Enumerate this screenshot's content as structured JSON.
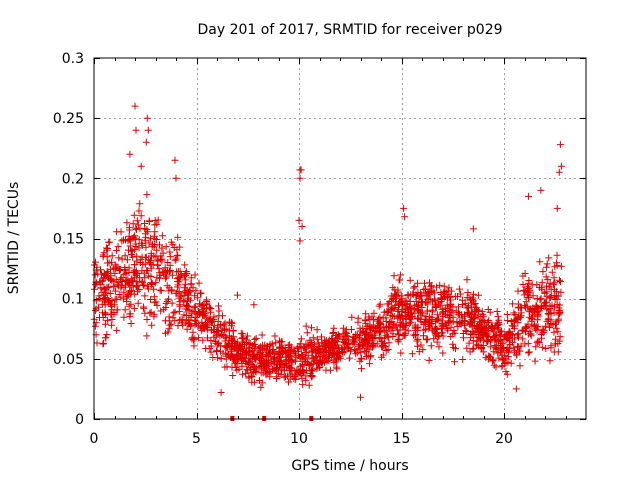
{
  "chart_data": {
    "type": "scatter",
    "title": "Day 201 of 2017, SRMTID for receiver p029",
    "xlabel": "GPS time / hours",
    "ylabel": "SRMTID / TECUs",
    "xlim": [
      0,
      24
    ],
    "ylim": [
      0,
      0.3
    ],
    "x_ticks": [
      0,
      5,
      10,
      15,
      20
    ],
    "x_tick_labels": [
      "0",
      "5",
      "10",
      "15",
      "20"
    ],
    "y_ticks": [
      0,
      0.05,
      0.1,
      0.15,
      0.2,
      0.25,
      0.3
    ],
    "y_tick_labels": [
      "0",
      "0.05",
      "0.1",
      "0.15",
      "0.2",
      "0.25",
      "0.3"
    ],
    "grid": true,
    "marker": "plus",
    "series": [
      {
        "name": "SRMTID",
        "color": "#e00000",
        "profile": [
          {
            "x": 0.0,
            "y": 0.1,
            "spread": 0.03
          },
          {
            "x": 1.0,
            "y": 0.11,
            "spread": 0.035
          },
          {
            "x": 2.0,
            "y": 0.13,
            "spread": 0.045
          },
          {
            "x": 3.0,
            "y": 0.13,
            "spread": 0.045
          },
          {
            "x": 4.0,
            "y": 0.11,
            "spread": 0.035
          },
          {
            "x": 5.0,
            "y": 0.09,
            "spread": 0.025
          },
          {
            "x": 6.0,
            "y": 0.07,
            "spread": 0.02
          },
          {
            "x": 7.0,
            "y": 0.055,
            "spread": 0.015
          },
          {
            "x": 8.0,
            "y": 0.05,
            "spread": 0.015
          },
          {
            "x": 9.0,
            "y": 0.05,
            "spread": 0.015
          },
          {
            "x": 10.0,
            "y": 0.05,
            "spread": 0.018
          },
          {
            "x": 11.0,
            "y": 0.055,
            "spread": 0.015
          },
          {
            "x": 12.0,
            "y": 0.06,
            "spread": 0.015
          },
          {
            "x": 13.0,
            "y": 0.065,
            "spread": 0.015
          },
          {
            "x": 14.0,
            "y": 0.075,
            "spread": 0.018
          },
          {
            "x": 15.0,
            "y": 0.09,
            "spread": 0.025
          },
          {
            "x": 16.0,
            "y": 0.085,
            "spread": 0.025
          },
          {
            "x": 17.0,
            "y": 0.085,
            "spread": 0.025
          },
          {
            "x": 18.0,
            "y": 0.085,
            "spread": 0.025
          },
          {
            "x": 19.0,
            "y": 0.075,
            "spread": 0.02
          },
          {
            "x": 20.0,
            "y": 0.06,
            "spread": 0.02
          },
          {
            "x": 21.0,
            "y": 0.09,
            "spread": 0.035
          },
          {
            "x": 22.0,
            "y": 0.09,
            "spread": 0.035
          },
          {
            "x": 22.8,
            "y": 0.1,
            "spread": 0.035
          }
        ],
        "points_per_hour": 95,
        "x_end": 22.8,
        "outliers": [
          {
            "x": 2.0,
            "y": 0.26
          },
          {
            "x": 2.05,
            "y": 0.24
          },
          {
            "x": 2.6,
            "y": 0.25
          },
          {
            "x": 2.65,
            "y": 0.24
          },
          {
            "x": 2.55,
            "y": 0.23
          },
          {
            "x": 3.95,
            "y": 0.215
          },
          {
            "x": 4.0,
            "y": 0.2
          },
          {
            "x": 1.75,
            "y": 0.22
          },
          {
            "x": 2.3,
            "y": 0.21
          },
          {
            "x": 10.05,
            "y": 0.207
          },
          {
            "x": 10.1,
            "y": 0.207
          },
          {
            "x": 10.05,
            "y": 0.2
          },
          {
            "x": 10.0,
            "y": 0.165
          },
          {
            "x": 10.15,
            "y": 0.16
          },
          {
            "x": 10.05,
            "y": 0.148
          },
          {
            "x": 15.1,
            "y": 0.175
          },
          {
            "x": 15.15,
            "y": 0.168
          },
          {
            "x": 18.5,
            "y": 0.158
          },
          {
            "x": 21.2,
            "y": 0.185
          },
          {
            "x": 21.8,
            "y": 0.19
          },
          {
            "x": 22.6,
            "y": 0.175
          },
          {
            "x": 22.75,
            "y": 0.228
          },
          {
            "x": 22.8,
            "y": 0.21
          },
          {
            "x": 22.7,
            "y": 0.205
          },
          {
            "x": 7.0,
            "y": 0.103
          },
          {
            "x": 7.8,
            "y": 0.095
          },
          {
            "x": 13.0,
            "y": 0.018
          },
          {
            "x": 20.6,
            "y": 0.025
          },
          {
            "x": 6.2,
            "y": 0.022
          }
        ],
        "zero_points": [
          {
            "x": 6.75,
            "y": 0
          },
          {
            "x": 8.3,
            "y": 0
          },
          {
            "x": 10.6,
            "y": 0
          }
        ]
      }
    ]
  }
}
